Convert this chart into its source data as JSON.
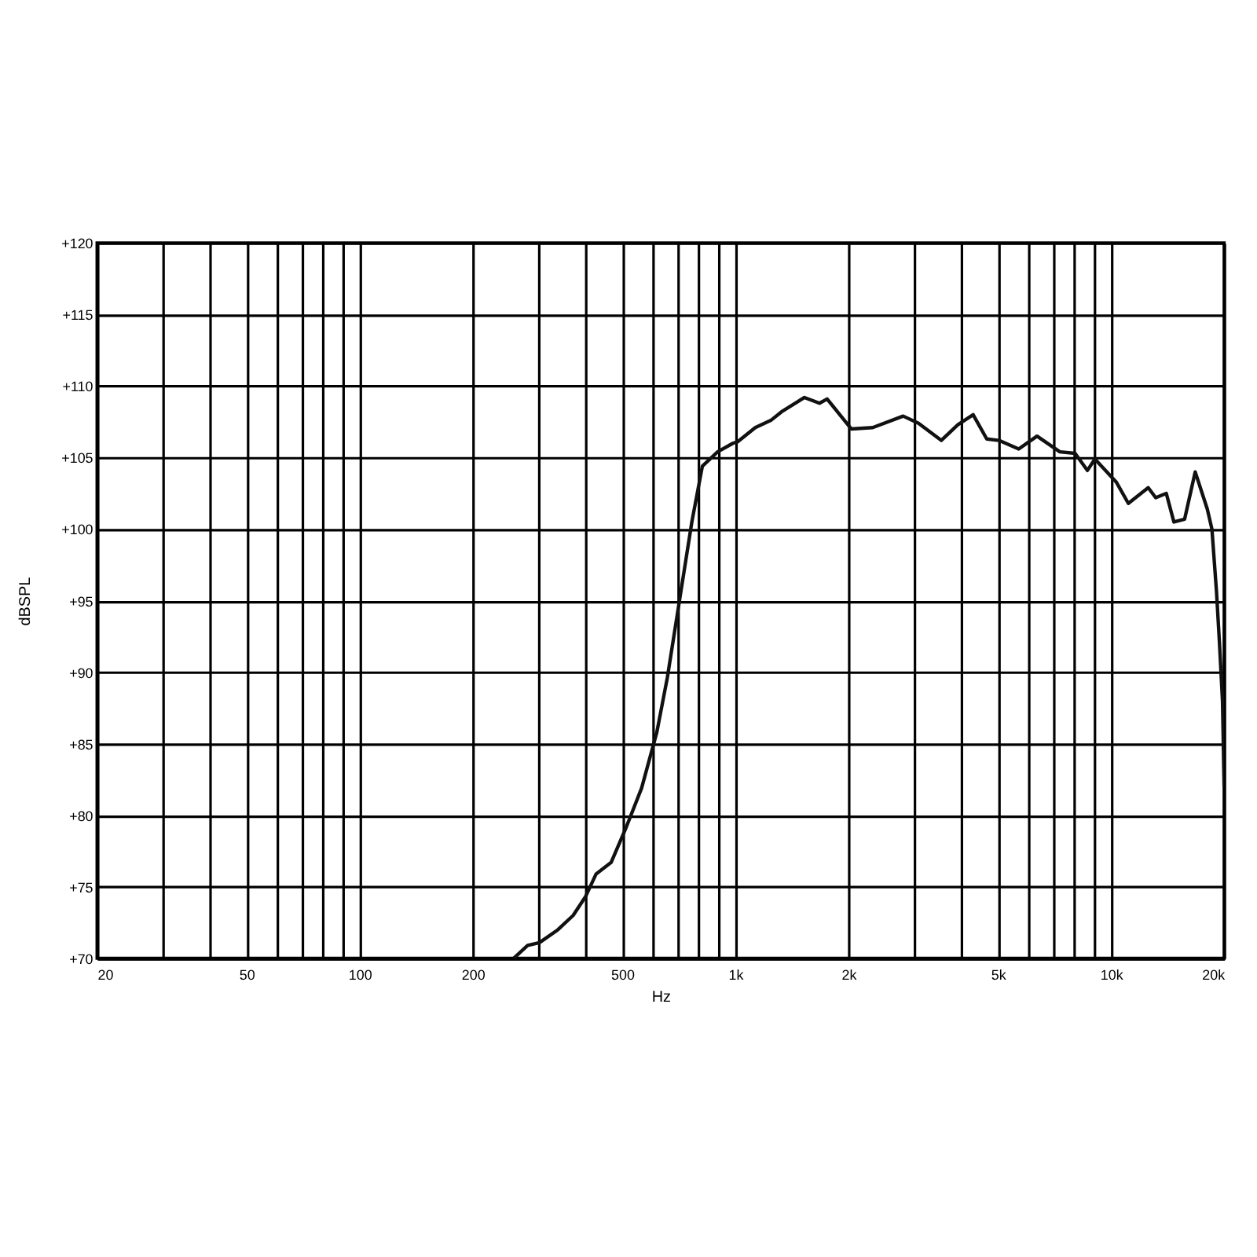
{
  "chart_data": {
    "type": "line",
    "xlabel": "Hz",
    "ylabel": "dBSPL",
    "log": "x",
    "grid": true,
    "line_style": "solid",
    "marker": "none",
    "xlim": [
      20,
      20000
    ],
    "ylim": [
      70,
      120
    ],
    "xticks": [
      20,
      {
        "value": 30,
        "label": null
      },
      {
        "value": 40,
        "label": null
      },
      50,
      {
        "value": 60,
        "label": null
      },
      {
        "value": 70,
        "label": null
      },
      {
        "value": 80,
        "label": null
      },
      {
        "value": 90,
        "label": null
      },
      100,
      200,
      {
        "value": 300,
        "label": null
      },
      {
        "value": 400,
        "label": null
      },
      500,
      {
        "value": 600,
        "label": null
      },
      {
        "value": 700,
        "label": null
      },
      {
        "value": 800,
        "label": null
      },
      {
        "value": 900,
        "label": null
      },
      {
        "value": 1000,
        "label": "1k"
      },
      {
        "value": 2000,
        "label": "2k"
      },
      {
        "value": 3000,
        "label": null
      },
      {
        "value": 4000,
        "label": null
      },
      {
        "value": 5000,
        "label": "5k"
      },
      {
        "value": 6000,
        "label": null
      },
      {
        "value": 7000,
        "label": null
      },
      {
        "value": 8000,
        "label": null
      },
      {
        "value": 9000,
        "label": null
      },
      {
        "value": 10000,
        "label": "10k"
      },
      {
        "value": 20000,
        "label": "20k"
      }
    ],
    "yticks": [
      {
        "value": 70,
        "label": "+70"
      },
      {
        "value": 75,
        "label": "+75"
      },
      {
        "value": 80,
        "label": "+80"
      },
      {
        "value": 85,
        "label": "+85"
      },
      {
        "value": 90,
        "label": "+90"
      },
      {
        "value": 95,
        "label": "+95"
      },
      {
        "value": 100,
        "label": "+100"
      },
      {
        "value": 105,
        "label": "+105"
      },
      {
        "value": 110,
        "label": "+110"
      },
      {
        "value": 115,
        "label": "+115"
      },
      {
        "value": 120,
        "label": "+120"
      }
    ],
    "series": [
      {
        "color": "#111111",
        "x": [
          257,
          280,
          301,
          337,
          370,
          399,
          426,
          467,
          513,
          563,
          618,
          659,
          711,
          766,
          817,
          897,
          985,
          1013,
          1130,
          1243,
          1327,
          1527,
          1675,
          1755,
          2037,
          2321,
          2797,
          3072,
          3533,
          3911,
          4295,
          4669,
          5031,
          5679,
          6353,
          7308,
          8020,
          8650,
          9057,
          10320,
          11120,
          12560,
          13150,
          14030,
          14700,
          15700,
          16750,
          18040,
          18560,
          19090,
          19440,
          19800,
          20000
        ],
        "values": [
          70,
          70.9,
          71.1,
          72.0,
          73.0,
          74.3,
          75.9,
          76.7,
          79.2,
          81.9,
          85.8,
          89.6,
          95.1,
          100.5,
          104.4,
          105.4,
          106.0,
          106.1,
          107.1,
          107.6,
          108.2,
          109.2,
          108.8,
          109.1,
          107.0,
          107.1,
          107.9,
          107.4,
          106.2,
          107.3,
          108.0,
          106.3,
          106.2,
          105.6,
          106.5,
          105.4,
          105.3,
          104.1,
          104.9,
          103.3,
          101.8,
          102.9,
          102.2,
          102.5,
          100.5,
          100.7,
          104.0,
          101.4,
          100.0,
          95.6,
          92.0,
          88.0,
          82.0
        ]
      }
    ]
  }
}
